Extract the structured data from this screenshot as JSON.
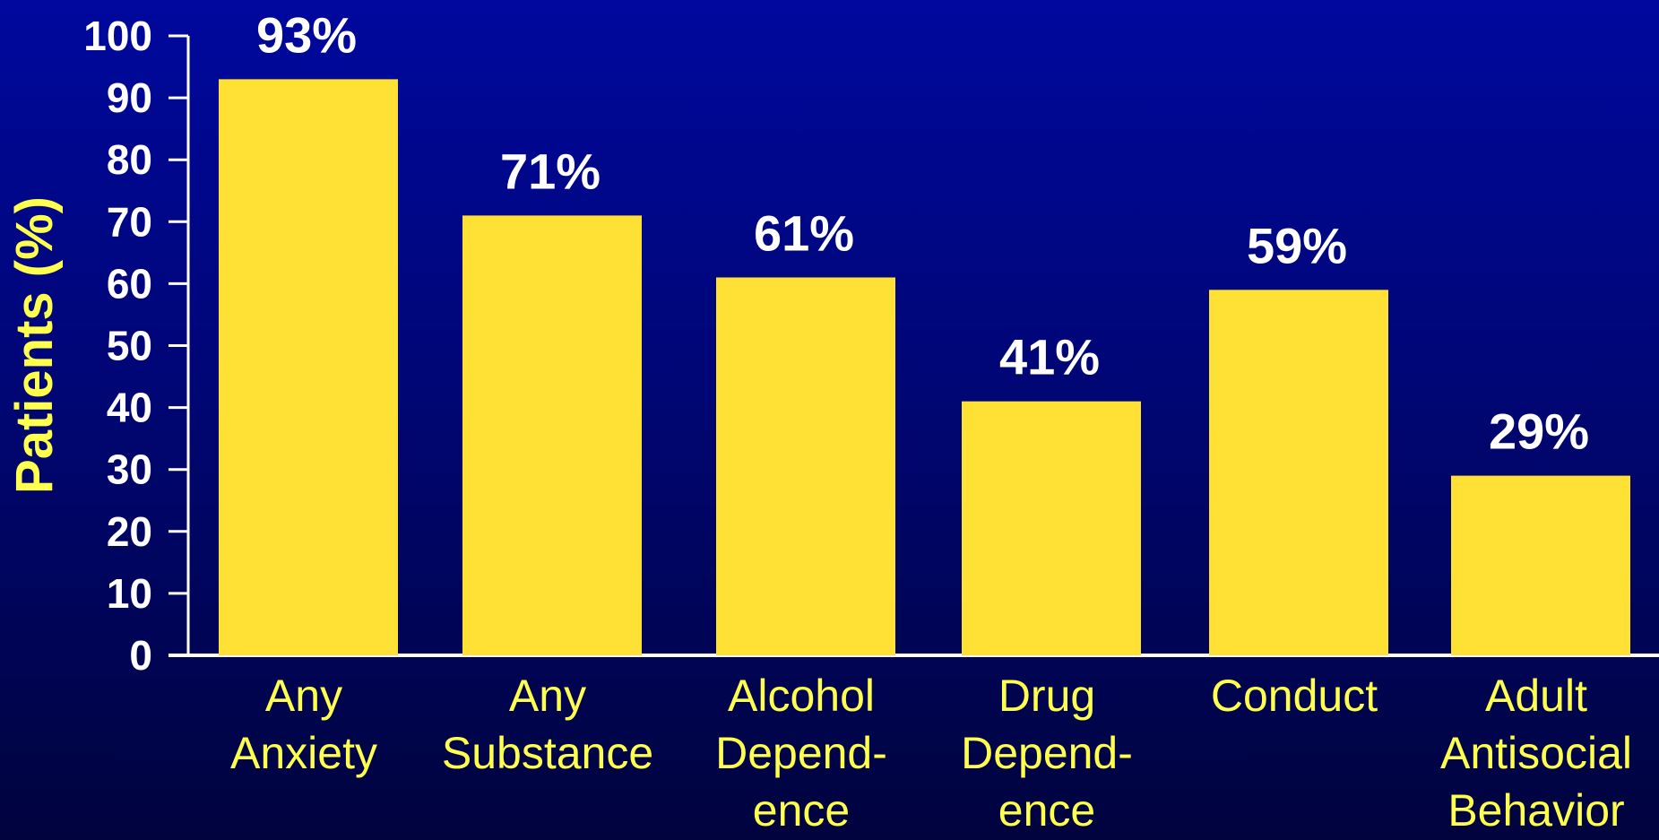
{
  "chart_data": {
    "type": "bar",
    "categories": [
      [
        "Any",
        "Anxiety"
      ],
      [
        "Any",
        "Substance"
      ],
      [
        "Alcohol",
        "Depend-",
        "ence"
      ],
      [
        "Drug",
        "Depend-",
        "ence"
      ],
      [
        "Conduct"
      ],
      [
        "Adult",
        "Antisocial",
        "Behavior"
      ]
    ],
    "values": [
      93,
      71,
      61,
      41,
      59,
      29
    ],
    "value_labels": [
      "93%",
      "71%",
      "61%",
      "41%",
      "59%",
      "29%"
    ],
    "ylabel": "Patients (%)",
    "xlabel": "",
    "ylim": [
      0,
      100
    ],
    "yticks": [
      0,
      10,
      20,
      30,
      40,
      50,
      60,
      70,
      80,
      90,
      100
    ],
    "grid": false,
    "colors": {
      "bar": "#ffe135",
      "axis": "#ffffff",
      "category_text": "#ffff4d",
      "ylabel_text": "#ffff4d",
      "value_text": "#ffffff"
    }
  }
}
